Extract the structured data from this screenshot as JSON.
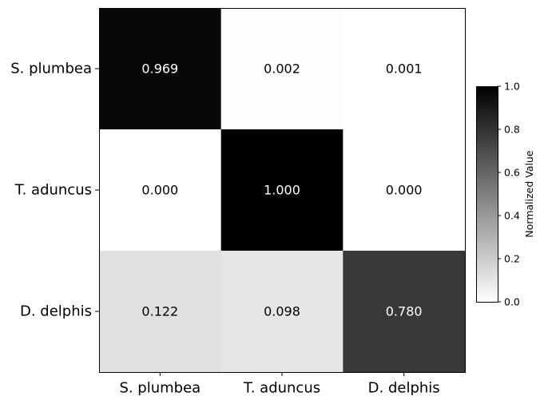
{
  "chart_data": {
    "type": "heatmap",
    "rows": [
      "S. plumbea",
      "T. aduncus",
      "D. delphis"
    ],
    "columns": [
      "S. plumbea",
      "T. aduncus",
      "D. delphis"
    ],
    "values": [
      [
        0.969,
        0.002,
        0.001
      ],
      [
        0.0,
        1.0,
        0.0
      ],
      [
        0.122,
        0.098,
        0.78
      ]
    ],
    "cell_labels": [
      [
        "0.969",
        "0.002",
        "0.001"
      ],
      [
        "0.000",
        "1.000",
        "0.000"
      ],
      [
        "0.122",
        "0.098",
        "0.780"
      ]
    ],
    "colorbar": {
      "label": "Normalized Value",
      "range": [
        0.0,
        1.0
      ],
      "ticks": [
        "0.0",
        "0.2",
        "0.4",
        "0.6",
        "0.8",
        "1.0"
      ],
      "colormap": "white-to-black"
    }
  }
}
